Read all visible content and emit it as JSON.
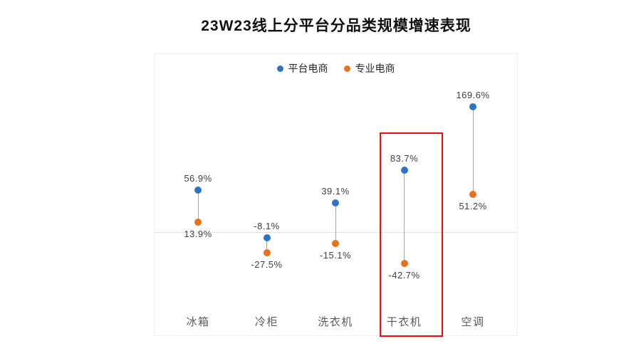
{
  "title": "23W23线上分平台分品类规模增速表现",
  "legend": {
    "items": [
      {
        "label": "平台电商",
        "color": "#2e74c6"
      },
      {
        "label": "专业电商",
        "color": "#e8711a"
      }
    ]
  },
  "chart_data": {
    "type": "scatter",
    "subtype": "dumbbell",
    "title": "23W23线上分平台分品类规模增速表现",
    "categories": [
      "冰箱",
      "冷柜",
      "洗衣机",
      "干衣机",
      "空调"
    ],
    "series": [
      {
        "name": "平台电商",
        "color": "#2e74c6",
        "values": [
          56.9,
          -8.1,
          39.1,
          83.7,
          169.6
        ],
        "labels": [
          "56.9%",
          "-8.1%",
          "39.1%",
          "83.7%",
          "169.6%"
        ]
      },
      {
        "name": "专业电商",
        "color": "#e8711a",
        "values": [
          13.9,
          -27.5,
          -15.1,
          -42.7,
          51.2
        ],
        "labels": [
          "13.9%",
          "-27.5%",
          "-15.1%",
          "-42.7%",
          "51.2%"
        ]
      }
    ],
    "xlabel": "",
    "ylabel": "",
    "axis": {
      "zero_baseline": true,
      "gridlines": false,
      "tick_labels_shown": false,
      "y_implied_range": [
        -60,
        190
      ]
    },
    "legend_position": "top-center",
    "connector_color": "#a6a6a6",
    "annotations": [
      {
        "type": "highlight-box",
        "category": "干衣机",
        "color": "#fb0505"
      }
    ]
  }
}
